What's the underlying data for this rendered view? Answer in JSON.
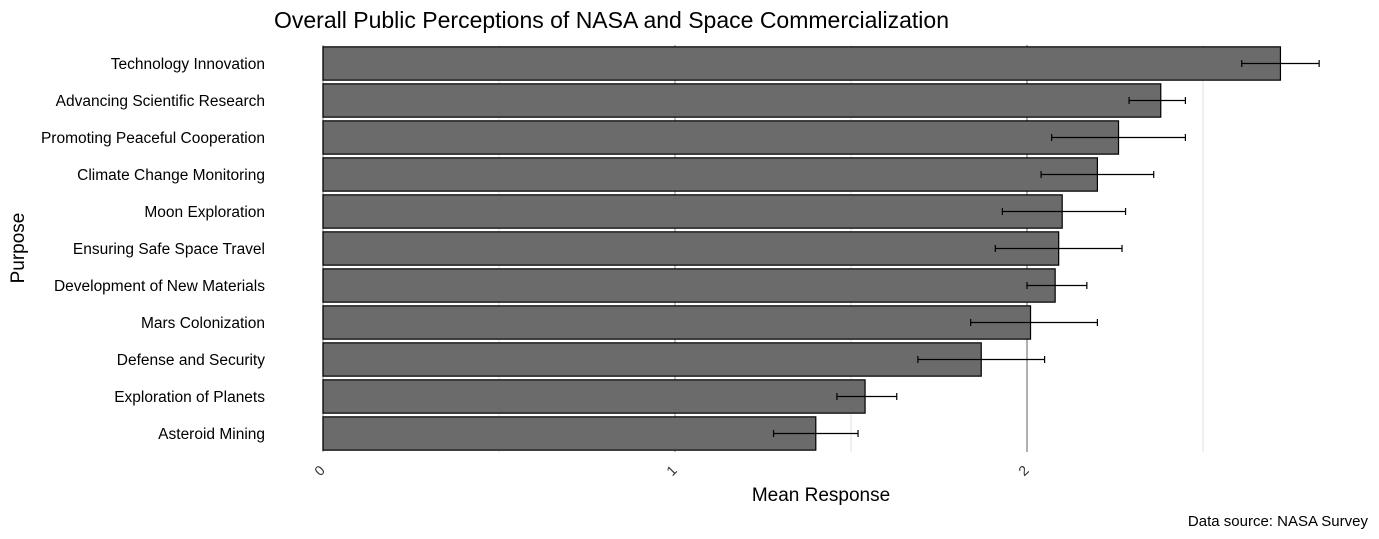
{
  "chart_data": {
    "type": "bar",
    "orientation": "horizontal",
    "title": "Overall Public Perceptions of NASA and Space Commercialization",
    "xlabel": "Mean Response",
    "ylabel": "Purpose",
    "caption": "Data source: NASA Survey",
    "xlim": [
      0,
      2.9
    ],
    "x_ticks": [
      0,
      1,
      2
    ],
    "x_tick_labels": [
      "0",
      "1",
      "2"
    ],
    "grid": true,
    "categories": [
      "Technology Innovation",
      "Advancing Scientific Research",
      "Promoting Peaceful Cooperation",
      "Climate Change Monitoring",
      "Moon Exploration",
      "Ensuring Safe Space Travel",
      "Development of New Materials",
      "Mars Colonization",
      "Defense and Security",
      "Exploration of Planets",
      "Asteroid Mining"
    ],
    "values": [
      2.72,
      2.38,
      2.26,
      2.2,
      2.1,
      2.09,
      2.08,
      2.01,
      1.87,
      1.54,
      1.4
    ],
    "error_low": [
      2.61,
      2.29,
      2.07,
      2.04,
      1.93,
      1.91,
      2.0,
      1.84,
      1.69,
      1.46,
      1.28
    ],
    "error_high": [
      2.83,
      2.45,
      2.45,
      2.36,
      2.28,
      2.27,
      2.17,
      2.2,
      2.05,
      1.63,
      1.52
    ],
    "colors": {
      "bar_fill": "#6b6b6b",
      "bar_stroke": "#000000",
      "grid_major": "#b0b0b0",
      "grid_minor": "#e4e4e4",
      "error_bar": "#000000"
    }
  }
}
